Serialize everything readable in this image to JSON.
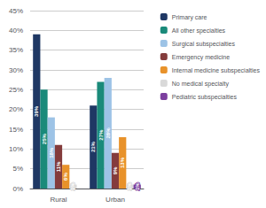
{
  "chart_data": {
    "type": "bar",
    "categories": [
      "Rural",
      "Urban"
    ],
    "series": [
      {
        "name": "Primary care",
        "color": "#1F3864",
        "values": [
          39,
          21
        ],
        "value_labels": [
          "39%",
          "21%"
        ]
      },
      {
        "name": "All other specialties",
        "color": "#1A8A7A",
        "values": [
          25,
          27
        ],
        "value_labels": [
          "25%",
          "27%"
        ]
      },
      {
        "name": "Surgical subspecialties",
        "color": "#9DC3E6",
        "values": [
          18,
          28
        ],
        "value_labels": [
          "18%",
          "28%"
        ]
      },
      {
        "name": "Emergency medicine",
        "color": "#843C3C",
        "values": [
          11,
          9
        ],
        "value_labels": [
          "11%",
          "9%"
        ]
      },
      {
        "name": "Internal medicine subspecialties",
        "color": "#E8922A",
        "values": [
          6,
          13
        ],
        "value_labels": [
          "6%",
          "13%"
        ]
      },
      {
        "name": "No medical specialty",
        "color": "#D9D9D9",
        "values": [
          1,
          1
        ],
        "value_labels": [
          "1%",
          "1%"
        ]
      },
      {
        "name": "Pediatric subspecialties",
        "color": "#7B3F9E",
        "values": [
          0,
          1
        ],
        "value_labels": [
          null,
          "1%"
        ]
      }
    ],
    "ylim": [
      0,
      45
    ],
    "yticks": [
      {
        "value": 0,
        "label": "0%"
      },
      {
        "value": 5,
        "label": "5%"
      },
      {
        "value": 10,
        "label": "10%"
      },
      {
        "value": 15,
        "label": "15%"
      },
      {
        "value": 20,
        "label": "20%"
      },
      {
        "value": 25,
        "label": "25%"
      },
      {
        "value": 30,
        "label": "30%"
      },
      {
        "value": 35,
        "label": "35%"
      },
      {
        "value": 40,
        "label": "40%"
      },
      {
        "value": 45,
        "label": "45%"
      }
    ],
    "grid": true,
    "legend": "right",
    "data_labels": true
  }
}
